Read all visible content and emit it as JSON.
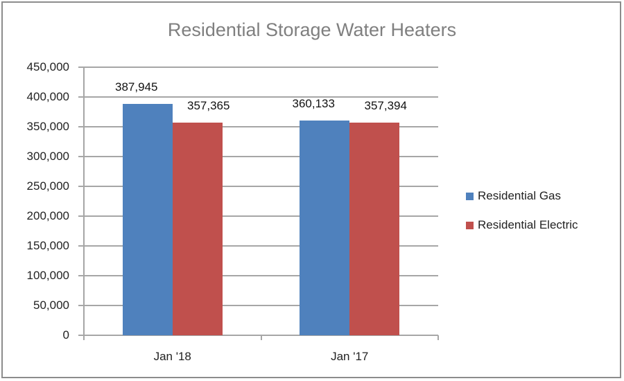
{
  "chart_data": {
    "type": "bar",
    "title": "Residential Storage Water Heaters",
    "xlabel": "",
    "ylabel": "",
    "categories": [
      "Jan '18",
      "Jan '17"
    ],
    "series": [
      {
        "name": "Residential Gas",
        "color": "#4f81bd",
        "values": [
          387945,
          360133
        ],
        "labels": [
          "387,945",
          "360,133"
        ]
      },
      {
        "name": "Residential Electric",
        "color": "#c0504d",
        "values": [
          357365,
          357394
        ],
        "labels": [
          "357,365",
          "357,394"
        ]
      }
    ],
    "ylim": [
      0,
      450000
    ],
    "yticks": [
      "0",
      "50,000",
      "100,000",
      "150,000",
      "200,000",
      "250,000",
      "300,000",
      "350,000",
      "400,000",
      "450,000"
    ],
    "grid": true,
    "legend_position": "right"
  }
}
